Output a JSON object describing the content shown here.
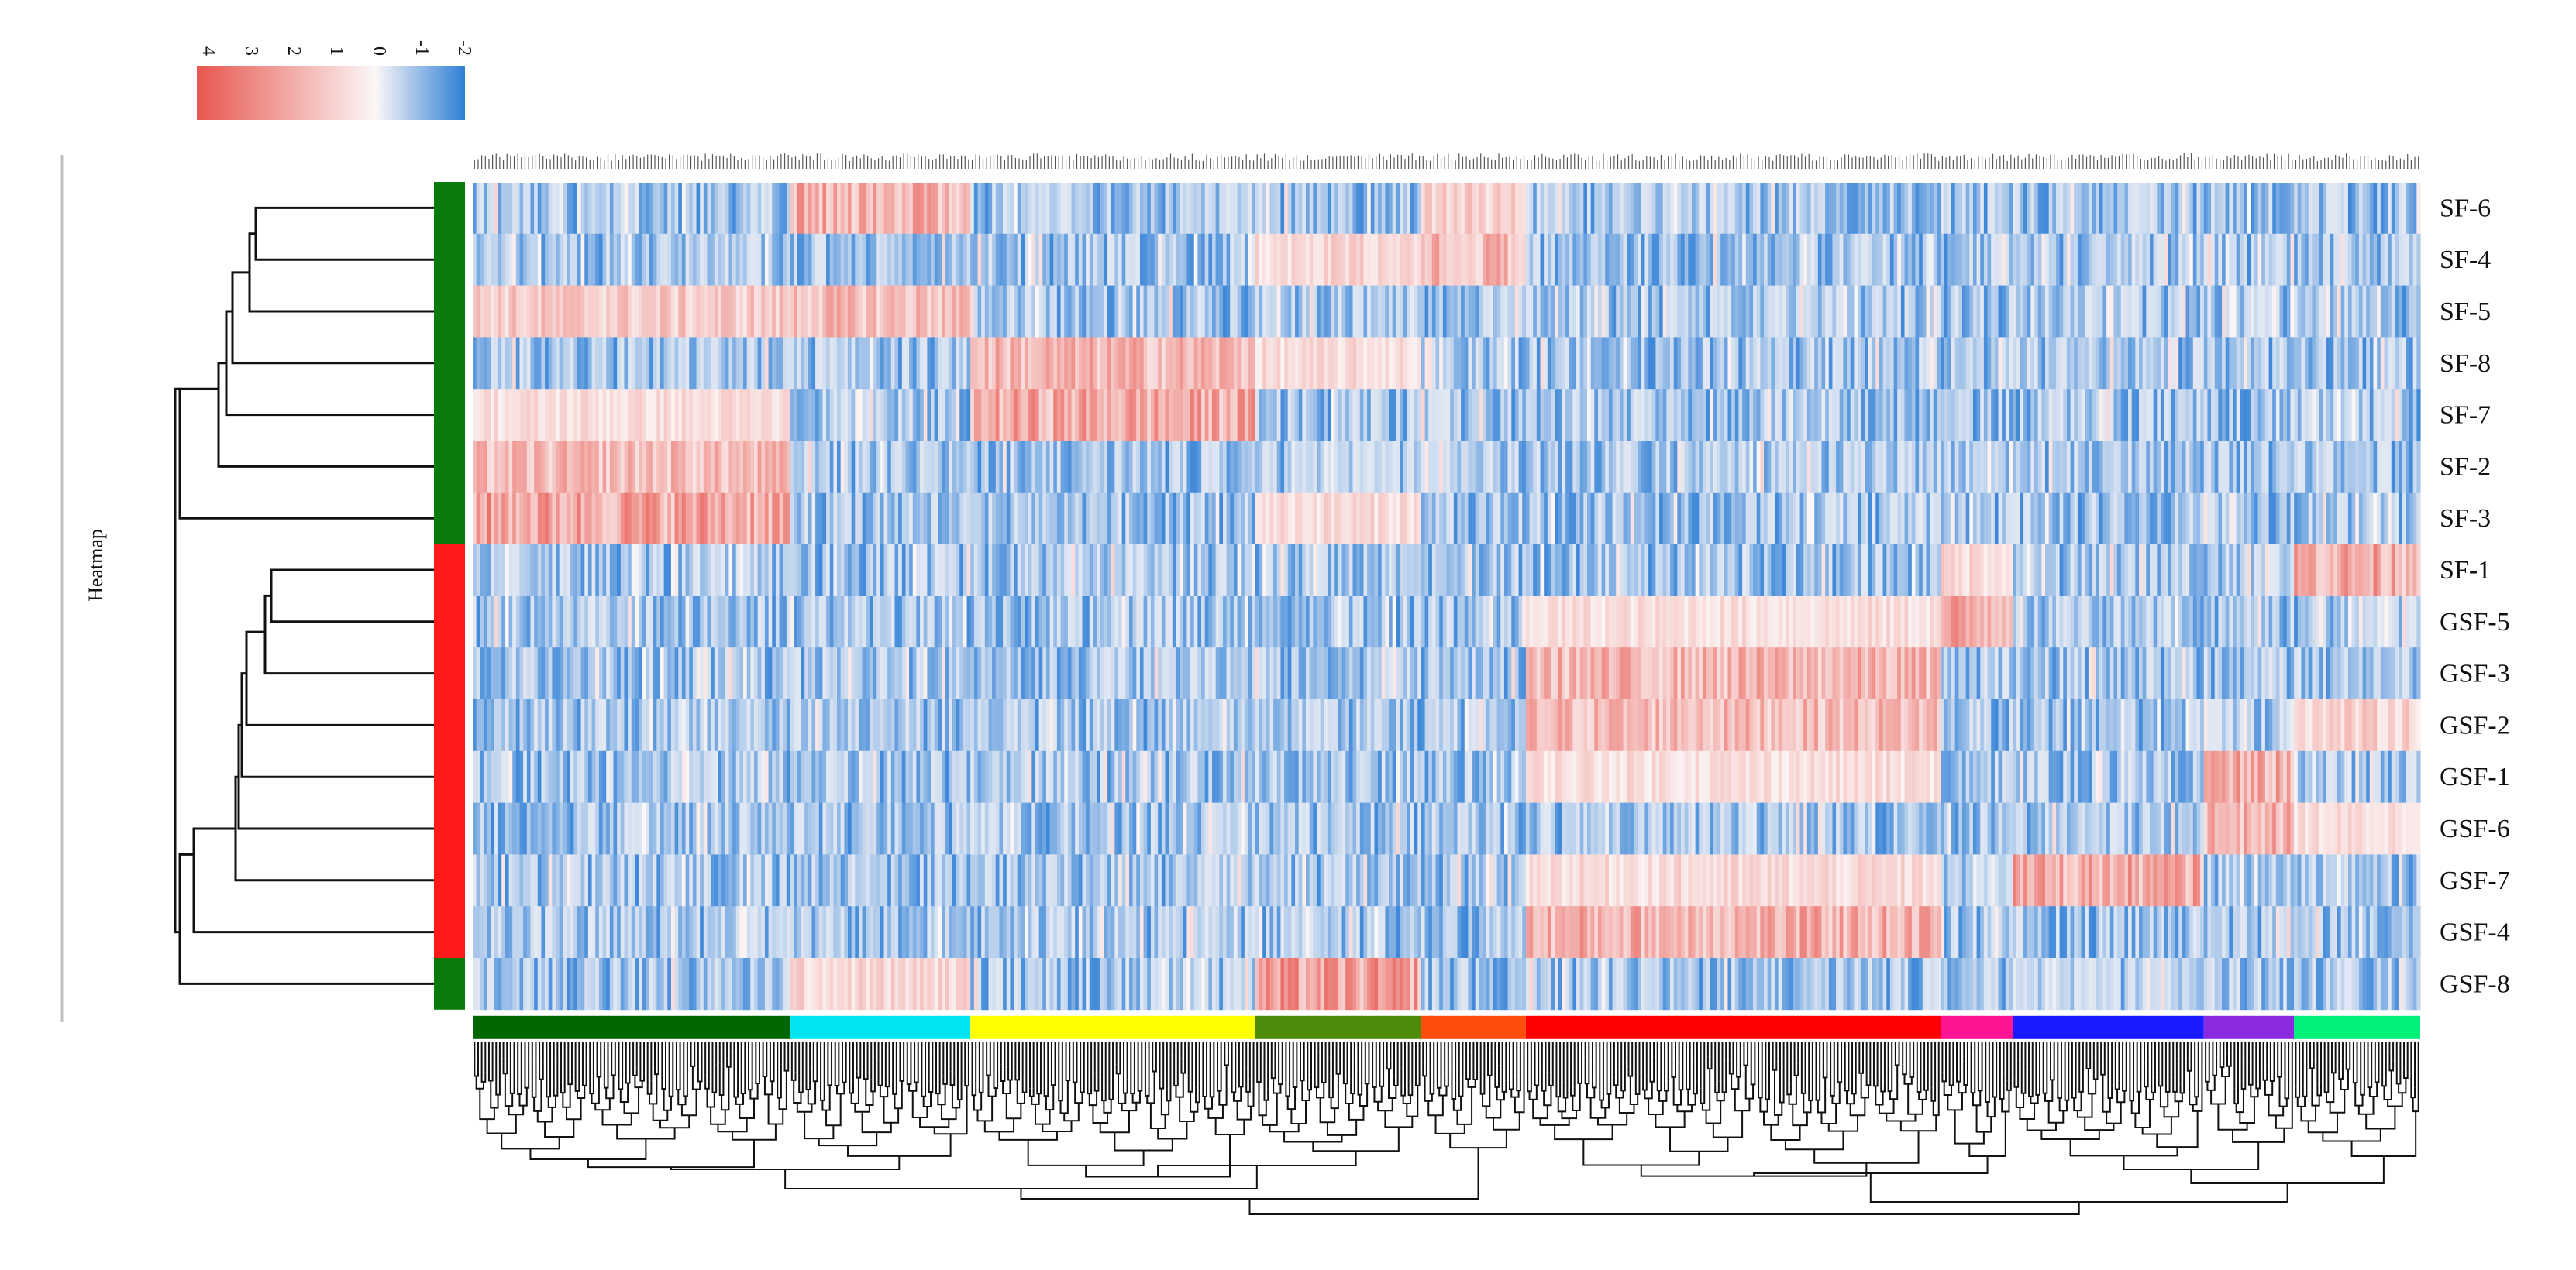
{
  "chart_data": {
    "type": "heatmap",
    "side_label": "Heatmap",
    "legend": {
      "min": -2,
      "max": 4,
      "ticks": [
        "4",
        "3",
        "2",
        "1",
        "0",
        "-1",
        "-2"
      ],
      "colors": {
        "high": "#e8574f",
        "mid": "#fbf7f7",
        "low": "#2f7fd6"
      }
    },
    "rows": [
      "SF-6",
      "SF-4",
      "SF-5",
      "SF-8",
      "SF-7",
      "SF-2",
      "SF-3",
      "SF-1",
      "GSF-5",
      "GSF-3",
      "GSF-2",
      "GSF-1",
      "GSF-6",
      "GSF-7",
      "GSF-4",
      "GSF-8"
    ],
    "row_groups": [
      {
        "color": "#0a7a0a",
        "from": 0,
        "to": 6
      },
      {
        "color": "#ff1a1a",
        "from": 7,
        "to": 14
      },
      {
        "color": "#0a7a0a",
        "from": 15,
        "to": 15
      }
    ],
    "n_columns": 540,
    "column_clusters": [
      {
        "color": "#006600",
        "columns": 88
      },
      {
        "color": "#00e5f0",
        "columns": 50
      },
      {
        "color": "#ffff00",
        "columns": 79
      },
      {
        "color": "#4d8c0a",
        "columns": 46
      },
      {
        "color": "#ff4d0d",
        "columns": 29
      },
      {
        "color": "#ff0000",
        "columns": 115
      },
      {
        "color": "#ff1493",
        "columns": 20
      },
      {
        "color": "#1a1aff",
        "columns": 53
      },
      {
        "color": "#8a2be2",
        "columns": 25
      },
      {
        "color": "#00f07a",
        "columns": 35
      }
    ],
    "high_blocks": [
      {
        "row": 0,
        "cluster": 1,
        "value": 2.6
      },
      {
        "row": 0,
        "cluster": 4,
        "value": 1.6
      },
      {
        "row": 1,
        "cluster": 4,
        "value": 2.4
      },
      {
        "row": 1,
        "cluster": 3,
        "value": 1.4
      },
      {
        "row": 2,
        "cluster": 1,
        "value": 2.2
      },
      {
        "row": 2,
        "cluster": 0,
        "value": 1.8
      },
      {
        "row": 3,
        "cluster": 2,
        "value": 2.4
      },
      {
        "row": 3,
        "cluster": 3,
        "value": 1.2
      },
      {
        "row": 4,
        "cluster": 2,
        "value": 2.8
      },
      {
        "row": 4,
        "cluster": 0,
        "value": 1.2
      },
      {
        "row": 5,
        "cluster": 0,
        "value": 2.2
      },
      {
        "row": 6,
        "cluster": 0,
        "value": 3.0
      },
      {
        "row": 6,
        "cluster": 3,
        "value": 1.3
      },
      {
        "row": 7,
        "cluster": 9,
        "value": 2.8
      },
      {
        "row": 7,
        "cluster": 6,
        "value": 1.4
      },
      {
        "row": 8,
        "cluster": 6,
        "value": 2.8
      },
      {
        "row": 8,
        "cluster": 5,
        "value": 1.2
      },
      {
        "row": 9,
        "cluster": 5,
        "value": 2.4
      },
      {
        "row": 10,
        "cluster": 5,
        "value": 2.3
      },
      {
        "row": 10,
        "cluster": 9,
        "value": 1.6
      },
      {
        "row": 11,
        "cluster": 8,
        "value": 2.6
      },
      {
        "row": 11,
        "cluster": 5,
        "value": 1.2
      },
      {
        "row": 12,
        "cluster": 8,
        "value": 2.5
      },
      {
        "row": 12,
        "cluster": 9,
        "value": 1.2
      },
      {
        "row": 13,
        "cluster": 7,
        "value": 2.7
      },
      {
        "row": 13,
        "cluster": 5,
        "value": 1.3
      },
      {
        "row": 14,
        "cluster": 5,
        "value": 2.6
      },
      {
        "row": 15,
        "cluster": 3,
        "value": 3.0
      },
      {
        "row": 15,
        "cluster": 1,
        "value": 1.4
      }
    ]
  }
}
